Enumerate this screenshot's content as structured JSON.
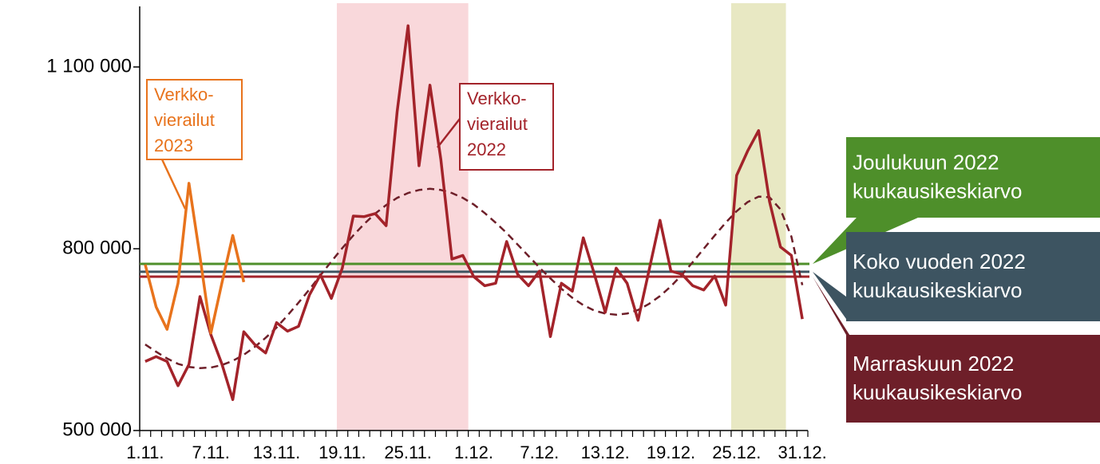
{
  "chart_data": {
    "type": "line",
    "categories": [
      "1.11.",
      null,
      null,
      null,
      null,
      null,
      "7.11.",
      null,
      null,
      null,
      null,
      null,
      "13.11.",
      null,
      null,
      null,
      null,
      null,
      "19.11.",
      null,
      null,
      null,
      null,
      null,
      "25.11.",
      null,
      null,
      null,
      null,
      null,
      "1.12.",
      null,
      null,
      null,
      null,
      null,
      "7.12.",
      null,
      null,
      null,
      null,
      null,
      "13.12.",
      null,
      null,
      null,
      null,
      null,
      "19.12.",
      null,
      null,
      null,
      null,
      null,
      "25.12.",
      null,
      null,
      null,
      null,
      null,
      "31.12."
    ],
    "ylim": [
      500000,
      1200000
    ],
    "yticks": [
      {
        "value": 500000,
        "label": "500 000"
      },
      {
        "value": 800000,
        "label": "800 000"
      },
      {
        "value": 1100000,
        "label": "1 100 000"
      }
    ],
    "highlights": [
      {
        "from": 18,
        "to": 30,
        "color": "#f9d8db"
      },
      {
        "from": 54,
        "to": 59,
        "color": "#e8e8c3"
      }
    ],
    "reference_lines": [
      {
        "name": [
          "Joulukuun 2022",
          "kuukausikeskiarvo"
        ],
        "value": 775000,
        "color": "#4e8f2a"
      },
      {
        "name": [
          "Koko vuoden 2022",
          "kuukausikeskiarvo"
        ],
        "value": 762000,
        "color": "#3d5461"
      },
      {
        "name": [
          "Marraskuun 2022",
          "kuukausikeskiarvo"
        ],
        "value": 754000,
        "color": "#6e1f29",
        "line_color": "#a3232a"
      }
    ],
    "series": [
      {
        "color": "#6e1f29",
        "dashed": true,
        "values": [
          642000,
          630000,
          619000,
          610000,
          605000,
          603000,
          604000,
          608000,
          615000,
          625000,
          638000,
          653000,
          670000,
          690000,
          711000,
          733000,
          756000,
          779000,
          801000,
          822000,
          841000,
          858000,
          872000,
          884000,
          892000,
          897000,
          899000,
          897000,
          892000,
          884000,
          873000,
          859000,
          843000,
          826000,
          807000,
          788000,
          769000,
          751000,
          734000,
          719000,
          707000,
          698000,
          693000,
          691000,
          693000,
          699000,
          709000,
          722000,
          738000,
          757000,
          778000,
          800000,
          822000,
          843000,
          862000,
          877000,
          886000,
          885000,
          865000,
          820000,
          740000
        ]
      },
      {
        "name": [
          "Verkko-",
          "vierailut",
          "2022"
        ],
        "color": "#a3232a",
        "values": [
          614000,
          622000,
          614000,
          574000,
          609000,
          721000,
          658000,
          610000,
          551000,
          663000,
          642000,
          628000,
          678000,
          664000,
          672000,
          724000,
          757000,
          718000,
          768000,
          854000,
          853000,
          858000,
          838000,
          1026000,
          1168000,
          937000,
          1070000,
          947000,
          783000,
          789000,
          754000,
          739000,
          743000,
          812000,
          758000,
          739000,
          763000,
          655000,
          743000,
          730000,
          818000,
          759000,
          695000,
          768000,
          743000,
          682000,
          764000,
          847000,
          763000,
          758000,
          739000,
          732000,
          755000,
          707000,
          921000,
          961000,
          995000,
          878000,
          803000,
          789000,
          684000
        ]
      },
      {
        "name": [
          "Verkko-",
          "vierailut",
          "2023"
        ],
        "color": "#e8731c",
        "values": [
          774000,
          704000,
          667000,
          743000,
          908000,
          787000,
          661000,
          743000,
          822000,
          745000,
          null,
          null,
          null,
          null,
          null,
          null,
          null,
          null,
          null,
          null,
          null,
          null,
          null,
          null,
          null,
          null,
          null,
          null,
          null,
          null,
          null,
          null,
          null,
          null,
          null,
          null,
          null,
          null,
          null,
          null,
          null,
          null,
          null,
          null,
          null,
          null,
          null,
          null,
          null,
          null,
          null,
          null,
          null,
          null,
          null,
          null,
          null,
          null,
          null,
          null,
          null
        ]
      }
    ]
  }
}
